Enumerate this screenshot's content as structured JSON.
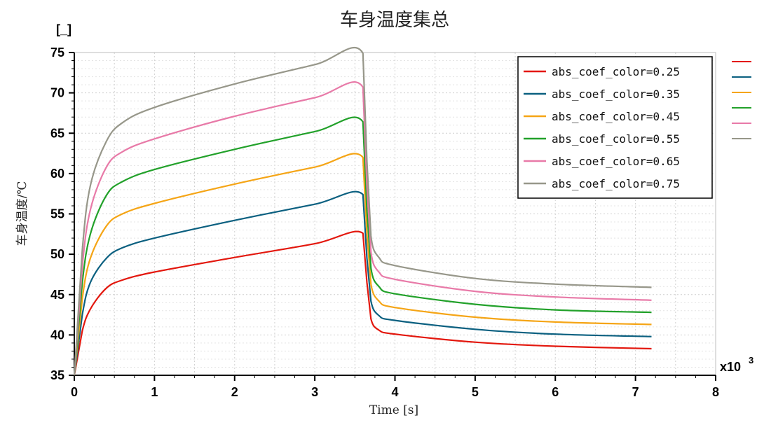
{
  "chart_data": {
    "type": "line",
    "title": "车身温度集总",
    "xlabel": "Time [s]",
    "ylabel": "车身温度/℃",
    "y_unit": "[_]",
    "x_multiplier": "x10",
    "x_multiplier_exp": "3",
    "xlim": [
      0,
      8
    ],
    "ylim": [
      35,
      75
    ],
    "x_ticks": [
      0,
      1,
      2,
      3,
      4,
      5,
      6,
      7,
      8
    ],
    "y_ticks": [
      35,
      40,
      45,
      50,
      55,
      60,
      65,
      70,
      75
    ],
    "grid": true,
    "legend_position": "top-right",
    "series": [
      {
        "name": "abs_coef_color=0.25",
        "color": "#e3170d",
        "start": 35,
        "peak": 52.6,
        "end": 38.3,
        "x": [
          0,
          0.1,
          0.2,
          0.4,
          0.6,
          1.0,
          2.0,
          3.0,
          3.6,
          3.65,
          3.7,
          3.8,
          4.0,
          5.0,
          6.0,
          7.2
        ],
        "y": [
          35,
          40.5,
          43.2,
          45.8,
          46.8,
          47.8,
          49.6,
          51.3,
          52.6,
          46.5,
          42.0,
          40.6,
          40.1,
          39.1,
          38.6,
          38.3
        ]
      },
      {
        "name": "abs_coef_color=0.35",
        "color": "#0b6080",
        "start": 35,
        "peak": 57.4,
        "end": 39.8,
        "x": [
          0,
          0.1,
          0.2,
          0.4,
          0.6,
          1.0,
          2.0,
          3.0,
          3.6,
          3.65,
          3.7,
          3.8,
          4.0,
          5.0,
          6.0,
          7.2
        ],
        "y": [
          35,
          42.5,
          46.5,
          49.5,
          50.8,
          52.0,
          54.2,
          56.2,
          57.4,
          49.5,
          44.2,
          42.4,
          41.8,
          40.7,
          40.1,
          39.8
        ]
      },
      {
        "name": "abs_coef_color=0.45",
        "color": "#f5a516",
        "start": 35,
        "peak": 62.0,
        "end": 41.3,
        "x": [
          0,
          0.1,
          0.2,
          0.4,
          0.6,
          1.0,
          2.0,
          3.0,
          3.6,
          3.65,
          3.7,
          3.8,
          4.0,
          5.0,
          6.0,
          7.2
        ],
        "y": [
          35,
          44.5,
          49.5,
          53.5,
          55.0,
          56.3,
          58.7,
          60.8,
          62.0,
          52.5,
          46.3,
          44.2,
          43.4,
          42.2,
          41.6,
          41.3
        ]
      },
      {
        "name": "abs_coef_color=0.55",
        "color": "#22a12a",
        "start": 35,
        "peak": 66.4,
        "end": 42.8,
        "x": [
          0,
          0.1,
          0.2,
          0.4,
          0.6,
          1.0,
          2.0,
          3.0,
          3.6,
          3.65,
          3.7,
          3.8,
          4.0,
          5.0,
          6.0,
          7.2
        ],
        "y": [
          35,
          46.5,
          52.5,
          57.3,
          59.0,
          60.5,
          63.0,
          65.2,
          66.4,
          55.5,
          48.3,
          46.0,
          45.1,
          43.8,
          43.1,
          42.8
        ]
      },
      {
        "name": "abs_coef_color=0.65",
        "color": "#e87aa8",
        "start": 35,
        "peak": 70.7,
        "end": 44.3,
        "x": [
          0,
          0.1,
          0.2,
          0.4,
          0.6,
          1.0,
          2.0,
          3.0,
          3.6,
          3.65,
          3.7,
          3.8,
          4.0,
          5.0,
          6.0,
          7.2
        ],
        "y": [
          35,
          48.5,
          55.5,
          60.8,
          62.7,
          64.3,
          67.1,
          69.4,
          70.7,
          58.5,
          50.3,
          47.8,
          46.9,
          45.4,
          44.7,
          44.3
        ]
      },
      {
        "name": "abs_coef_color=0.75",
        "color": "#97978a",
        "start": 35,
        "peak": 74.9,
        "end": 45.9,
        "x": [
          0,
          0.1,
          0.2,
          0.4,
          0.6,
          1.0,
          2.0,
          3.0,
          3.6,
          3.65,
          3.7,
          3.8,
          4.0,
          5.0,
          6.0,
          7.2
        ],
        "y": [
          35,
          50.5,
          58.5,
          64.0,
          66.3,
          68.2,
          71.1,
          73.5,
          74.9,
          61.5,
          52.3,
          49.6,
          48.6,
          47.0,
          46.3,
          45.9
        ]
      }
    ]
  }
}
